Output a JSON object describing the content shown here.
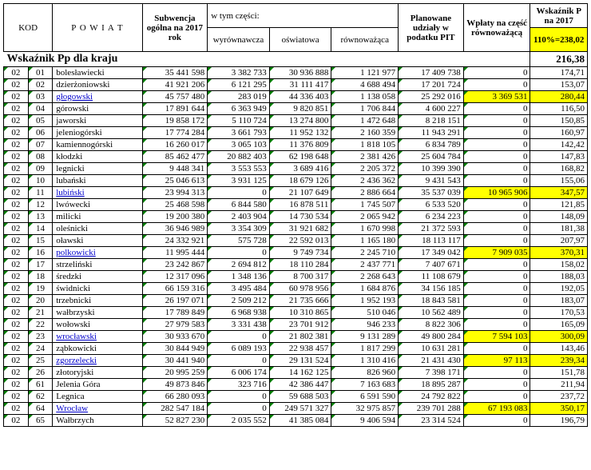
{
  "header": {
    "kod": "KOD",
    "powiat": "P O W I A T",
    "subwencja": "Subwencja ogólna na 2017 rok",
    "wtym": "w tym części:",
    "wyrownawcza": "wyrównawcza",
    "oswiatowa": "oświatowa",
    "rownowazaca": "równoważąca",
    "pit": "Planowane udziały w podatku PIT",
    "wplaty": "Wpłaty na część równoważącą",
    "wskaznik": "Wskaźnik P na 2017",
    "pct": "110%=238,02"
  },
  "kraj": {
    "label": "Wskaźnik Pp dla kraju",
    "value": "216,38"
  },
  "rows": [
    {
      "k1": "02",
      "k2": "01",
      "p": "bolesławiecki",
      "sub": "35 441 598",
      "wyr": "3 382 733",
      "osw": "30 936 888",
      "row": "1 121 977",
      "pit": "17 409 738",
      "wpl": "0",
      "wsk": "174,71"
    },
    {
      "k1": "02",
      "k2": "02",
      "p": "dzierżoniowski",
      "sub": "41 921 206",
      "wyr": "6 121 295",
      "osw": "31 111 417",
      "row": "4 688 494",
      "pit": "17 201 724",
      "wpl": "0",
      "wsk": "153,07"
    },
    {
      "k1": "02",
      "k2": "03",
      "p": "głogowski",
      "link": true,
      "sub": "45 757 480",
      "wyr": "283 019",
      "osw": "44 336 403",
      "row": "1 138 058",
      "pit": "25 292 016",
      "wpl": "3 369 531",
      "wplY": true,
      "wsk": "280,44",
      "wskY": true
    },
    {
      "k1": "02",
      "k2": "04",
      "p": "górowski",
      "sub": "17 891 644",
      "wyr": "6 363 949",
      "osw": "9 820 851",
      "row": "1 706 844",
      "pit": "4 600 227",
      "wpl": "0",
      "wsk": "116,50"
    },
    {
      "k1": "02",
      "k2": "05",
      "p": "jaworski",
      "sub": "19 858 172",
      "wyr": "5 110 724",
      "osw": "13 274 800",
      "row": "1 472 648",
      "pit": "8 218 151",
      "wpl": "0",
      "wsk": "150,85"
    },
    {
      "k1": "02",
      "k2": "06",
      "p": "jeleniogórski",
      "sub": "17 774 284",
      "wyr": "3 661 793",
      "osw": "11 952 132",
      "row": "2 160 359",
      "pit": "11 943 291",
      "wpl": "0",
      "wsk": "160,97"
    },
    {
      "k1": "02",
      "k2": "07",
      "p": "kamiennogórski",
      "sub": "16 260 017",
      "wyr": "3 065 103",
      "osw": "11 376 809",
      "row": "1 818 105",
      "pit": "6 834 789",
      "wpl": "0",
      "wsk": "142,42"
    },
    {
      "k1": "02",
      "k2": "08",
      "p": "kłodzki",
      "sub": "85 462 477",
      "wyr": "20 882 403",
      "osw": "62 198 648",
      "row": "2 381 426",
      "pit": "25 604 784",
      "wpl": "0",
      "wsk": "147,83"
    },
    {
      "k1": "02",
      "k2": "09",
      "p": "legnicki",
      "sub": "9 448 341",
      "wyr": "3 553 553",
      "osw": "3 689 416",
      "row": "2 205 372",
      "pit": "10 399 390",
      "wpl": "0",
      "wsk": "168,82"
    },
    {
      "k1": "02",
      "k2": "10",
      "p": "lubański",
      "sub": "25 046 613",
      "wyr": "3 931 125",
      "osw": "18 679 126",
      "row": "2 436 362",
      "pit": "9 431 543",
      "wpl": "0",
      "wsk": "155,06"
    },
    {
      "k1": "02",
      "k2": "11",
      "p": "lubiński",
      "link": true,
      "sub": "23 994 313",
      "wyr": "0",
      "osw": "21 107 649",
      "row": "2 886 664",
      "pit": "35 537 039",
      "wpl": "10 965 906",
      "wplY": true,
      "wsk": "347,57",
      "wskY": true
    },
    {
      "k1": "02",
      "k2": "12",
      "p": "lwówecki",
      "sub": "25 468 598",
      "wyr": "6 844 580",
      "osw": "16 878 511",
      "row": "1 745 507",
      "pit": "6 533 520",
      "wpl": "0",
      "wsk": "121,85"
    },
    {
      "k1": "02",
      "k2": "13",
      "p": "milicki",
      "sub": "19 200 380",
      "wyr": "2 403 904",
      "osw": "14 730 534",
      "row": "2 065 942",
      "pit": "6 234 223",
      "wpl": "0",
      "wsk": "148,09"
    },
    {
      "k1": "02",
      "k2": "14",
      "p": "oleśnicki",
      "sub": "36 946 989",
      "wyr": "3 354 309",
      "osw": "31 921 682",
      "row": "1 670 998",
      "pit": "21 372 593",
      "wpl": "0",
      "wsk": "181,38"
    },
    {
      "k1": "02",
      "k2": "15",
      "p": "oławski",
      "sub": "24 332 921",
      "wyr": "575 728",
      "osw": "22 592 013",
      "row": "1 165 180",
      "pit": "18 113 117",
      "wpl": "0",
      "wsk": "207,97"
    },
    {
      "k1": "02",
      "k2": "16",
      "p": "polkowicki",
      "link": true,
      "sub": "11 995 444",
      "wyr": "0",
      "osw": "9 749 734",
      "row": "2 245 710",
      "pit": "17 349 042",
      "wpl": "7 909 035",
      "wplY": true,
      "wsk": "370,31",
      "wskY": true
    },
    {
      "k1": "02",
      "k2": "17",
      "p": "strzeliński",
      "sub": "23 242 867",
      "wyr": "2 694 812",
      "osw": "18 110 284",
      "row": "2 437 771",
      "pit": "7 407 671",
      "wpl": "0",
      "wsk": "158,02"
    },
    {
      "k1": "02",
      "k2": "18",
      "p": "średzki",
      "sub": "12 317 096",
      "wyr": "1 348 136",
      "osw": "8 700 317",
      "row": "2 268 643",
      "pit": "11 108 679",
      "wpl": "0",
      "wsk": "188,03"
    },
    {
      "k1": "02",
      "k2": "19",
      "p": "świdnicki",
      "sub": "66 159 316",
      "wyr": "3 495 484",
      "osw": "60 978 956",
      "row": "1 684 876",
      "pit": "34 156 185",
      "wpl": "0",
      "wsk": "192,05"
    },
    {
      "k1": "02",
      "k2": "20",
      "p": "trzebnicki",
      "sub": "26 197 071",
      "wyr": "2 509 212",
      "osw": "21 735 666",
      "row": "1 952 193",
      "pit": "18 843 581",
      "wpl": "0",
      "wsk": "183,07"
    },
    {
      "k1": "02",
      "k2": "21",
      "p": "wałbrzyski",
      "sub": "17 789 849",
      "wyr": "6 968 938",
      "osw": "10 310 865",
      "row": "510 046",
      "pit": "10 562 489",
      "wpl": "0",
      "wsk": "170,53"
    },
    {
      "k1": "02",
      "k2": "22",
      "p": "wołowski",
      "sub": "27 979 583",
      "wyr": "3 331 438",
      "osw": "23 701 912",
      "row": "946 233",
      "pit": "8 822 306",
      "wpl": "0",
      "wsk": "165,09"
    },
    {
      "k1": "02",
      "k2": "23",
      "p": "wrocławski",
      "link": true,
      "sub": "30 933 670",
      "wyr": "0",
      "osw": "21 802 381",
      "row": "9 131 289",
      "pit": "49 800 284",
      "wpl": "7 594 103",
      "wplY": true,
      "wsk": "300,09",
      "wskY": true
    },
    {
      "k1": "02",
      "k2": "24",
      "p": "ząbkowicki",
      "sub": "30 844 949",
      "wyr": "6 089 193",
      "osw": "22 938 457",
      "row": "1 817 299",
      "pit": "10 631 281",
      "wpl": "0",
      "wsk": "143,46"
    },
    {
      "k1": "02",
      "k2": "25",
      "p": "zgorzelecki",
      "link": true,
      "sub": "30 441 940",
      "wyr": "0",
      "osw": "29 131 524",
      "row": "1 310 416",
      "pit": "21 431 430",
      "wpl": "97 113",
      "wplY": true,
      "wsk": "239,34",
      "wskY": true
    },
    {
      "k1": "02",
      "k2": "26",
      "p": "złotoryjski",
      "sub": "20 995 259",
      "wyr": "6 006 174",
      "osw": "14 162 125",
      "row": "826 960",
      "pit": "7 398 171",
      "wpl": "0",
      "wsk": "151,78"
    },
    {
      "k1": "02",
      "k2": "61",
      "p": "Jelenia Góra",
      "sub": "49 873 846",
      "wyr": "323 716",
      "osw": "42 386 447",
      "row": "7 163 683",
      "pit": "18 895 287",
      "wpl": "0",
      "wsk": "211,94"
    },
    {
      "k1": "02",
      "k2": "62",
      "p": "Legnica",
      "sub": "66 280 093",
      "wyr": "0",
      "osw": "59 688 503",
      "row": "6 591 590",
      "pit": "24 792 822",
      "wpl": "0",
      "wsk": "237,72"
    },
    {
      "k1": "02",
      "k2": "64",
      "p": "Wrocław",
      "link": true,
      "sub": "282 547 184",
      "wyr": "0",
      "osw": "249 571 327",
      "row": "32 975 857",
      "pit": "239 701 288",
      "wpl": "67 193 083",
      "wplY": true,
      "wsk": "350,17",
      "wskY": true
    },
    {
      "k1": "02",
      "k2": "65",
      "p": "Wałbrzych",
      "sub": "52 827 230",
      "wyr": "2 035 552",
      "osw": "41 385 084",
      "row": "9 406 594",
      "pit": "23 314 524",
      "wpl": "0",
      "wsk": "196,79"
    }
  ]
}
